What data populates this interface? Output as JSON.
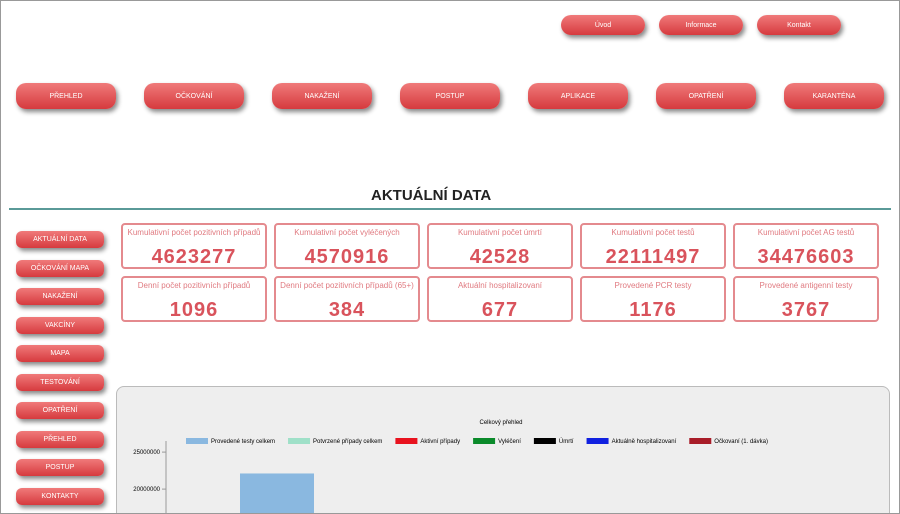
{
  "header": {
    "top_links": [
      "Úvod",
      "Informace",
      "Kontakt"
    ],
    "nav": [
      "PŘEHLED",
      "OČKOVÁNÍ",
      "NAKAŽENÍ",
      "POSTUP",
      "APLIKACE",
      "OPATŘENÍ",
      "KARANTÉNA"
    ],
    "title": "AKTUÁLNÍ DATA"
  },
  "sidebar": [
    "AKTUÁLNÍ DATA",
    "OČKOVÁNÍ MAPA",
    "NAKAŽENÍ",
    "VAKCÍNY",
    "MAPA",
    "TESTOVÁNÍ",
    "OPATŘENÍ",
    "PŘEHLED",
    "POSTUP",
    "KONTAKTY"
  ],
  "cards": [
    {
      "label": "Kumulativní počet pozitivních případů",
      "value": "4623277"
    },
    {
      "label": "Kumulativní počet vyléčených",
      "value": "4570916"
    },
    {
      "label": "Kumulativní počet úmrtí",
      "value": "42528"
    },
    {
      "label": "Kumulativní počet testů",
      "value": "22111497"
    },
    {
      "label": "Kumulativní počet AG testů",
      "value": "34476603"
    },
    {
      "label": "Denní počet pozitivních případů",
      "value": "1096"
    },
    {
      "label": "Denní počet pozitivních případů (65+)",
      "value": "384"
    },
    {
      "label": "Aktuální hospitalizovaní",
      "value": "677"
    },
    {
      "label": "Provedené PCR testy",
      "value": "1176"
    },
    {
      "label": "Provedené antigenní testy",
      "value": "3767"
    }
  ],
  "chart_data": {
    "type": "bar",
    "title": "Celkový přehled",
    "categories": [
      null
    ],
    "series": [
      {
        "name": "Provedené testy celkem",
        "color": "#8ab8e0",
        "values": [
          22111497
        ]
      },
      {
        "name": "Potvrzené případy celkem",
        "color": "#9fe0c8",
        "values": [
          null
        ]
      },
      {
        "name": "Aktivní případy",
        "color": "#e8121e",
        "values": [
          null
        ]
      },
      {
        "name": "Vyléčení",
        "color": "#0a8a2a",
        "values": [
          null
        ]
      },
      {
        "name": "Úmrtí",
        "color": "#000000",
        "values": [
          null
        ]
      },
      {
        "name": "Aktuálně hospitalizovaní",
        "color": "#1020e0",
        "values": [
          null
        ]
      },
      {
        "name": "Očkovaní (1. dávka)",
        "color": "#a81c28",
        "values": [
          null
        ]
      }
    ],
    "ylim": [
      16500000,
      26500000
    ],
    "yticks": [
      20000000,
      25000000
    ]
  }
}
